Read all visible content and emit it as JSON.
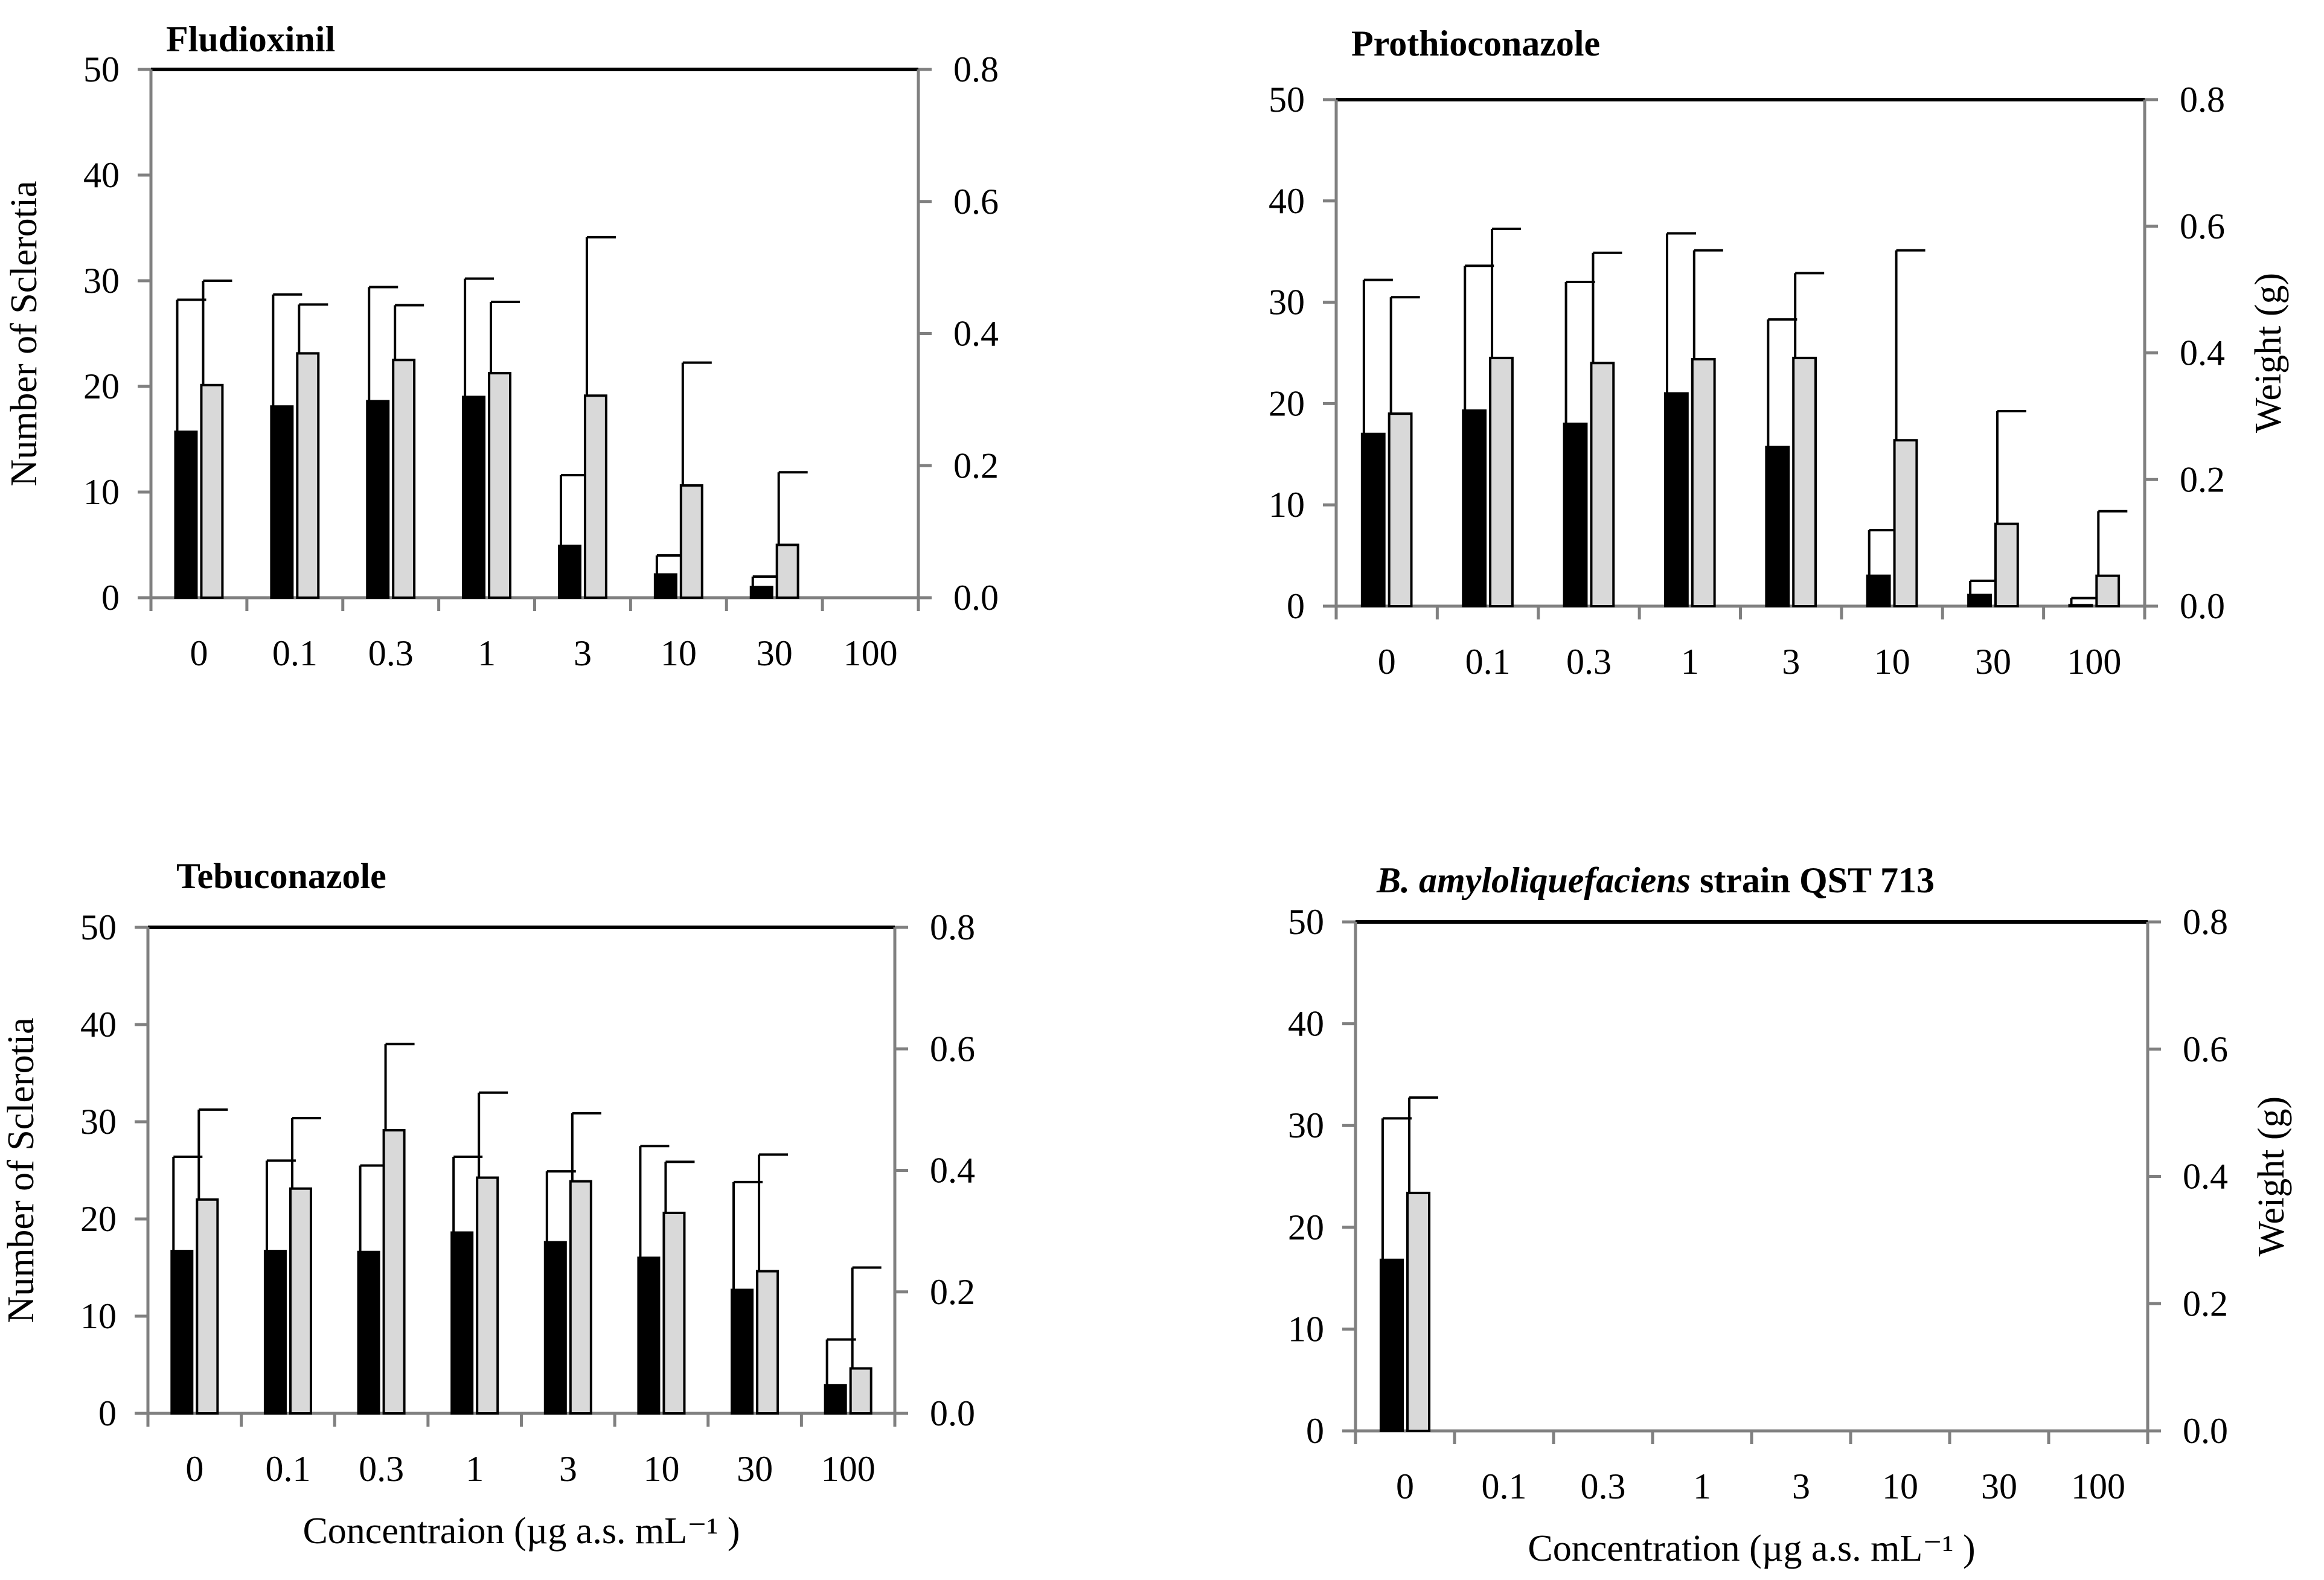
{
  "colors": {
    "sclerotia_bar": "#000000",
    "weight_bar": "#d9d9d9",
    "axis": "#808080",
    "top_border": "#000000"
  },
  "chart_data": [
    {
      "type": "bar",
      "title": "Fludioxinil",
      "title_italic": "",
      "categories": [
        "0",
        "0.1",
        "0.3",
        "1",
        "3",
        "10",
        "30",
        "100"
      ],
      "ylabel": "Number of Sclerotia",
      "y2label": "",
      "xlabel": "",
      "ylim": [
        0,
        50
      ],
      "y2lim": [
        0,
        0.8
      ],
      "yticks": [
        "0",
        "10",
        "20",
        "30",
        "40",
        "50"
      ],
      "y2ticks": [
        "0.0",
        "0.2",
        "0.4",
        "0.6",
        "0.8"
      ],
      "series": [
        {
          "name": "Number of Sclerotia",
          "axis": "left",
          "color": "#000000",
          "values": [
            15.7,
            18.1,
            18.6,
            19.0,
            4.9,
            2.2,
            1.0,
            0
          ],
          "errors": [
            12.5,
            10.6,
            10.8,
            11.2,
            6.7,
            1.8,
            1.0,
            0
          ]
        },
        {
          "name": "Weight (g)",
          "axis": "right",
          "color": "#d9d9d9",
          "values": [
            0.322,
            0.37,
            0.36,
            0.34,
            0.306,
            0.17,
            0.08,
            0
          ],
          "errors": [
            0.158,
            0.074,
            0.083,
            0.108,
            0.24,
            0.186,
            0.11,
            0
          ]
        }
      ]
    },
    {
      "type": "bar",
      "title": "Prothioconazole",
      "title_italic": "",
      "categories": [
        "0",
        "0.1",
        "0.3",
        "1",
        "3",
        "10",
        "30",
        "100"
      ],
      "ylabel": "",
      "y2label": "Weight (g)",
      "xlabel": "",
      "ylim": [
        0,
        50
      ],
      "y2lim": [
        0,
        0.8
      ],
      "yticks": [
        "0",
        "10",
        "20",
        "30",
        "40",
        "50"
      ],
      "y2ticks": [
        "0.0",
        "0.2",
        "0.4",
        "0.6",
        "0.8"
      ],
      "series": [
        {
          "name": "Number of Sclerotia",
          "axis": "left",
          "color": "#000000",
          "values": [
            17.0,
            19.3,
            18.0,
            21.0,
            15.7,
            3.0,
            1.1,
            0.1
          ],
          "errors": [
            15.2,
            14.3,
            14.0,
            15.8,
            12.6,
            4.5,
            1.4,
            0.7
          ]
        },
        {
          "name": "Weight (g)",
          "axis": "right",
          "color": "#d9d9d9",
          "values": [
            0.304,
            0.392,
            0.384,
            0.39,
            0.392,
            0.262,
            0.13,
            0.048
          ],
          "errors": [
            0.184,
            0.204,
            0.174,
            0.172,
            0.134,
            0.3,
            0.178,
            0.102
          ]
        }
      ]
    },
    {
      "type": "bar",
      "title": "Tebuconazole",
      "title_italic": "",
      "categories": [
        "0",
        "0.1",
        "0.3",
        "1",
        "3",
        "10",
        "30",
        "100"
      ],
      "ylabel": "Number of Sclerotia",
      "y2label": "",
      "xlabel": "Concentraion (µg a.s. mL⁻¹ )",
      "ylim": [
        0,
        50
      ],
      "y2lim": [
        0,
        0.8
      ],
      "yticks": [
        "0",
        "10",
        "20",
        "30",
        "40",
        "50"
      ],
      "y2ticks": [
        "0.0",
        "0.2",
        "0.4",
        "0.6",
        "0.8"
      ],
      "series": [
        {
          "name": "Number of Sclerotia",
          "axis": "left",
          "color": "#000000",
          "values": [
            16.7,
            16.7,
            16.6,
            18.6,
            17.6,
            16.0,
            12.7,
            2.9
          ],
          "errors": [
            9.7,
            9.3,
            8.9,
            7.8,
            7.3,
            11.5,
            11.1,
            4.7
          ]
        },
        {
          "name": "Weight (g)",
          "axis": "right",
          "color": "#d9d9d9",
          "values": [
            0.352,
            0.37,
            0.466,
            0.388,
            0.382,
            0.33,
            0.234,
            0.074
          ],
          "errors": [
            0.148,
            0.116,
            0.142,
            0.14,
            0.112,
            0.084,
            0.192,
            0.166
          ]
        }
      ]
    },
    {
      "type": "bar",
      "title": "strain QST 713",
      "title_italic": "B. amyloliquefaciens",
      "categories": [
        "0",
        "0.1",
        "0.3",
        "1",
        "3",
        "10",
        "30",
        "100"
      ],
      "ylabel": "",
      "y2label": "Weight (g)",
      "xlabel": "Concentration (µg a.s. mL⁻¹ )",
      "ylim": [
        0,
        50
      ],
      "y2lim": [
        0,
        0.8
      ],
      "yticks": [
        "0",
        "10",
        "20",
        "30",
        "40",
        "50"
      ],
      "y2ticks": [
        "0.0",
        "0.2",
        "0.4",
        "0.6",
        "0.8"
      ],
      "series": [
        {
          "name": "Number of Sclerotia",
          "axis": "left",
          "color": "#000000",
          "values": [
            16.8,
            0,
            0,
            0,
            0,
            0,
            0,
            0
          ],
          "errors": [
            13.9,
            0,
            0,
            0,
            0,
            0,
            0,
            0
          ]
        },
        {
          "name": "Weight (g)",
          "axis": "right",
          "color": "#d9d9d9",
          "values": [
            0.374,
            0,
            0,
            0,
            0,
            0,
            0,
            0
          ],
          "errors": [
            0.15,
            0,
            0,
            0,
            0,
            0,
            0,
            0
          ]
        }
      ]
    }
  ]
}
